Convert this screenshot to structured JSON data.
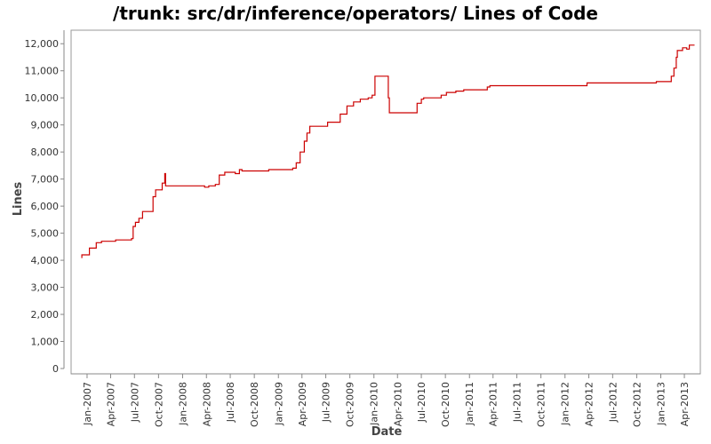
{
  "chart_data": {
    "type": "line",
    "title": "/trunk: src/dr/inference/operators/ Lines of Code",
    "xlabel": "Date",
    "ylabel": "Lines",
    "ylim": [
      0,
      12500
    ],
    "y_ticks": [
      0,
      1000,
      2000,
      3000,
      4000,
      5000,
      6000,
      7000,
      8000,
      9000,
      10000,
      11000,
      12000
    ],
    "y_tick_labels": [
      "0",
      "1,000",
      "2,000",
      "3,000",
      "4,000",
      "5,000",
      "6,000",
      "7,000",
      "8,000",
      "9,000",
      "10,000",
      "11,000",
      "12,000"
    ],
    "xlim": [
      "2006-11-01",
      "2013-06-01"
    ],
    "x_ticks": [
      "2007-01-01",
      "2007-04-01",
      "2007-07-01",
      "2007-10-01",
      "2008-01-01",
      "2008-04-01",
      "2008-07-01",
      "2008-10-01",
      "2009-01-01",
      "2009-04-01",
      "2009-07-01",
      "2009-10-01",
      "2010-01-01",
      "2010-04-01",
      "2010-07-01",
      "2010-10-01",
      "2011-01-01",
      "2011-04-01",
      "2011-07-01",
      "2011-10-01",
      "2012-01-01",
      "2012-04-01",
      "2012-07-01",
      "2012-10-01",
      "2013-01-01",
      "2013-04-01"
    ],
    "x_tick_labels": [
      "Jan-2007",
      "Apr-2007",
      "Jul-2007",
      "Oct-2007",
      "Jan-2008",
      "Apr-2008",
      "Jul-2008",
      "Oct-2008",
      "Jan-2009",
      "Apr-2009",
      "Jul-2009",
      "Oct-2009",
      "Jan-2010",
      "Apr-2010",
      "Jul-2010",
      "Oct-2010",
      "Jan-2011",
      "Apr-2011",
      "Jul-2011",
      "Oct-2011",
      "Jan-2012",
      "Apr-2012",
      "Jul-2012",
      "Oct-2012",
      "Jan-2013",
      "Apr-2013"
    ],
    "grid": false,
    "legend": "none",
    "colors": {
      "line": "#cc0000",
      "background": "#ffffff"
    },
    "series": [
      {
        "points": [
          [
            "2006-12-10",
            4100
          ],
          [
            "2006-12-12",
            4200
          ],
          [
            "2007-01-10",
            4450
          ],
          [
            "2007-02-05",
            4650
          ],
          [
            "2007-02-25",
            4700
          ],
          [
            "2007-04-20",
            4750
          ],
          [
            "2007-06-20",
            4800
          ],
          [
            "2007-06-26",
            5250
          ],
          [
            "2007-07-05",
            5400
          ],
          [
            "2007-07-18",
            5550
          ],
          [
            "2007-08-01",
            5800
          ],
          [
            "2007-08-20",
            5800
          ],
          [
            "2007-09-10",
            6350
          ],
          [
            "2007-09-20",
            6600
          ],
          [
            "2007-10-15",
            6850
          ],
          [
            "2007-10-25",
            7200
          ],
          [
            "2007-10-28",
            6750
          ],
          [
            "2008-03-20",
            6750
          ],
          [
            "2008-03-25",
            6700
          ],
          [
            "2008-04-10",
            6750
          ],
          [
            "2008-05-05",
            6800
          ],
          [
            "2008-05-20",
            7150
          ],
          [
            "2008-06-10",
            7250
          ],
          [
            "2008-07-20",
            7200
          ],
          [
            "2008-08-05",
            7350
          ],
          [
            "2008-08-15",
            7300
          ],
          [
            "2008-11-15",
            7300
          ],
          [
            "2008-11-25",
            7350
          ],
          [
            "2009-02-15",
            7350
          ],
          [
            "2009-02-25",
            7400
          ],
          [
            "2009-03-10",
            7600
          ],
          [
            "2009-03-25",
            8000
          ],
          [
            "2009-04-10",
            8400
          ],
          [
            "2009-04-20",
            8700
          ],
          [
            "2009-05-01",
            8950
          ],
          [
            "2009-07-01",
            8950
          ],
          [
            "2009-07-08",
            9100
          ],
          [
            "2009-08-20",
            9100
          ],
          [
            "2009-08-25",
            9400
          ],
          [
            "2009-09-20",
            9700
          ],
          [
            "2009-10-15",
            9850
          ],
          [
            "2009-11-10",
            9950
          ],
          [
            "2009-12-10",
            10000
          ],
          [
            "2009-12-25",
            10100
          ],
          [
            "2010-01-05",
            10800
          ],
          [
            "2010-02-20",
            10800
          ],
          [
            "2010-02-25",
            10000
          ],
          [
            "2010-03-01",
            9450
          ],
          [
            "2010-06-10",
            9450
          ],
          [
            "2010-06-15",
            9800
          ],
          [
            "2010-07-01",
            9950
          ],
          [
            "2010-07-10",
            10000
          ],
          [
            "2010-09-15",
            10100
          ],
          [
            "2010-10-05",
            10200
          ],
          [
            "2010-11-10",
            10250
          ],
          [
            "2010-12-10",
            10300
          ],
          [
            "2011-03-10",
            10400
          ],
          [
            "2011-03-20",
            10450
          ],
          [
            "2012-03-20",
            10450
          ],
          [
            "2012-03-25",
            10550
          ],
          [
            "2012-12-10",
            10550
          ],
          [
            "2012-12-15",
            10600
          ],
          [
            "2013-02-10",
            10800
          ],
          [
            "2013-02-20",
            11100
          ],
          [
            "2013-03-01",
            11500
          ],
          [
            "2013-03-05",
            11750
          ],
          [
            "2013-03-25",
            11850
          ],
          [
            "2013-04-10",
            11800
          ],
          [
            "2013-04-20",
            11950
          ],
          [
            "2013-05-10",
            11950
          ]
        ]
      }
    ]
  }
}
